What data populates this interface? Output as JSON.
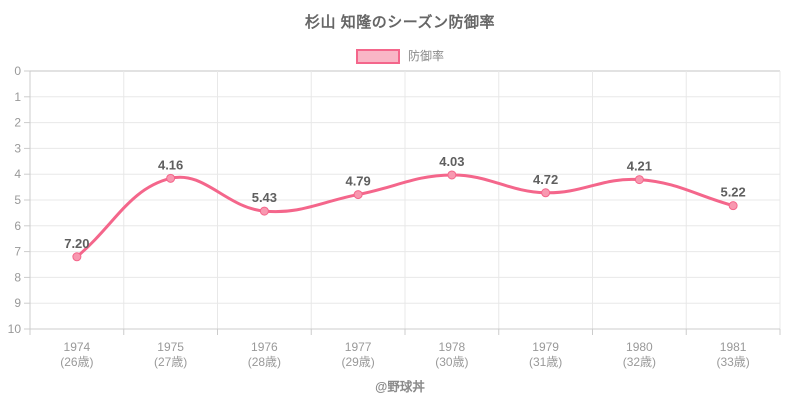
{
  "title": "杉山 知隆のシーズン防御率",
  "footer": "@野球丼",
  "legend": {
    "label": "防御率"
  },
  "colors": {
    "line": "#f4668b",
    "legend_fill": "#f9b6c6",
    "marker_fill": "#f898b0",
    "grid": "#e8e8e8",
    "axis": "#cccccc",
    "zero_line": "#c4c4c4",
    "title_text": "#666666",
    "tick_text": "#999999",
    "data_label_text": "#5f5f5f",
    "legend_text": "#888888",
    "footer_text": "#8a8a8a"
  },
  "chart_data": {
    "type": "line",
    "title": "杉山 知隆のシーズン防御率",
    "categories": [
      "1974",
      "1975",
      "1976",
      "1977",
      "1978",
      "1979",
      "1980",
      "1981"
    ],
    "category_sublabels": [
      "(26歳)",
      "(27歳)",
      "(28歳)",
      "(29歳)",
      "(30歳)",
      "(31歳)",
      "(32歳)",
      "(33歳)"
    ],
    "series": [
      {
        "name": "防御率",
        "values": [
          7.2,
          4.16,
          5.43,
          4.79,
          4.03,
          4.72,
          4.21,
          5.22
        ]
      }
    ],
    "value_labels": [
      "7.20",
      "4.16",
      "5.43",
      "4.79",
      "4.03",
      "4.72",
      "4.21",
      "5.22"
    ],
    "xlabel": "",
    "ylabel": "",
    "ylim": [
      0,
      10
    ],
    "y_ticks": [
      0,
      1,
      2,
      3,
      4,
      5,
      6,
      7,
      8,
      9,
      10
    ],
    "y_inverted": true,
    "grid": true,
    "legend_position": "top",
    "curve": "smooth"
  }
}
